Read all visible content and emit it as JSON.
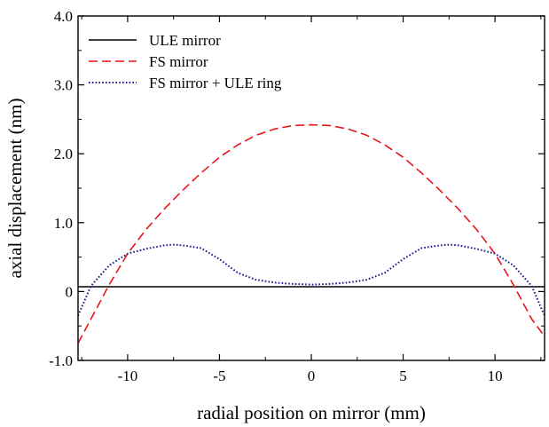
{
  "chart_data": {
    "type": "line",
    "xlabel": "radial position on mirror (mm)",
    "ylabel": "axial displacement (nm)",
    "xlim": [
      -12.7,
      12.7
    ],
    "ylim": [
      -1.0,
      4.0
    ],
    "x_ticks": [
      -10,
      -5,
      0,
      5,
      10
    ],
    "x_tick_labels": [
      "-10",
      "-5",
      "0",
      "5",
      "10"
    ],
    "y_ticks": [
      -1.0,
      0,
      1.0,
      2.0,
      3.0,
      4.0
    ],
    "y_tick_labels": [
      "-1.0",
      "0",
      "1.0",
      "2.0",
      "3.0",
      "4.0"
    ],
    "grid": false,
    "legend_position": "top-left",
    "series": [
      {
        "name": "ULE mirror",
        "color": "#000000",
        "style": "solid",
        "x": [
          -12.7,
          -10,
          -5,
          0,
          5,
          10,
          12.7
        ],
        "y": [
          0.07,
          0.07,
          0.07,
          0.07,
          0.07,
          0.07,
          0.07
        ]
      },
      {
        "name": "FS mirror",
        "color": "#e8141c",
        "style": "dashed",
        "x": [
          -12.7,
          -12,
          -11,
          -10,
          -9,
          -8,
          -7,
          -6,
          -5,
          -4,
          -3,
          -2,
          -1,
          0,
          1,
          2,
          3,
          4,
          5,
          6,
          7,
          8,
          9,
          10,
          11,
          12,
          12.7
        ],
        "y": [
          -0.75,
          -0.4,
          0.1,
          0.55,
          0.9,
          1.2,
          1.47,
          1.72,
          1.95,
          2.13,
          2.27,
          2.36,
          2.41,
          2.42,
          2.41,
          2.36,
          2.27,
          2.13,
          1.95,
          1.72,
          1.47,
          1.2,
          0.9,
          0.55,
          0.1,
          -0.4,
          -0.65
        ]
      },
      {
        "name": "FS mirror + ULE ring",
        "color": "#1a1a8c",
        "style": "dotted",
        "x": [
          -12.7,
          -12,
          -11,
          -10,
          -9,
          -8,
          -7.5,
          -7,
          -6,
          -5,
          -4,
          -3,
          -2,
          -1,
          0,
          1,
          2,
          3,
          4,
          5,
          6,
          7,
          7.5,
          8,
          9,
          10,
          11,
          12,
          12.7
        ],
        "y": [
          -0.35,
          0.08,
          0.38,
          0.55,
          0.62,
          0.67,
          0.68,
          0.67,
          0.63,
          0.47,
          0.27,
          0.17,
          0.13,
          0.11,
          0.1,
          0.11,
          0.13,
          0.17,
          0.27,
          0.47,
          0.63,
          0.67,
          0.68,
          0.67,
          0.62,
          0.55,
          0.38,
          0.08,
          -0.35
        ]
      }
    ]
  }
}
